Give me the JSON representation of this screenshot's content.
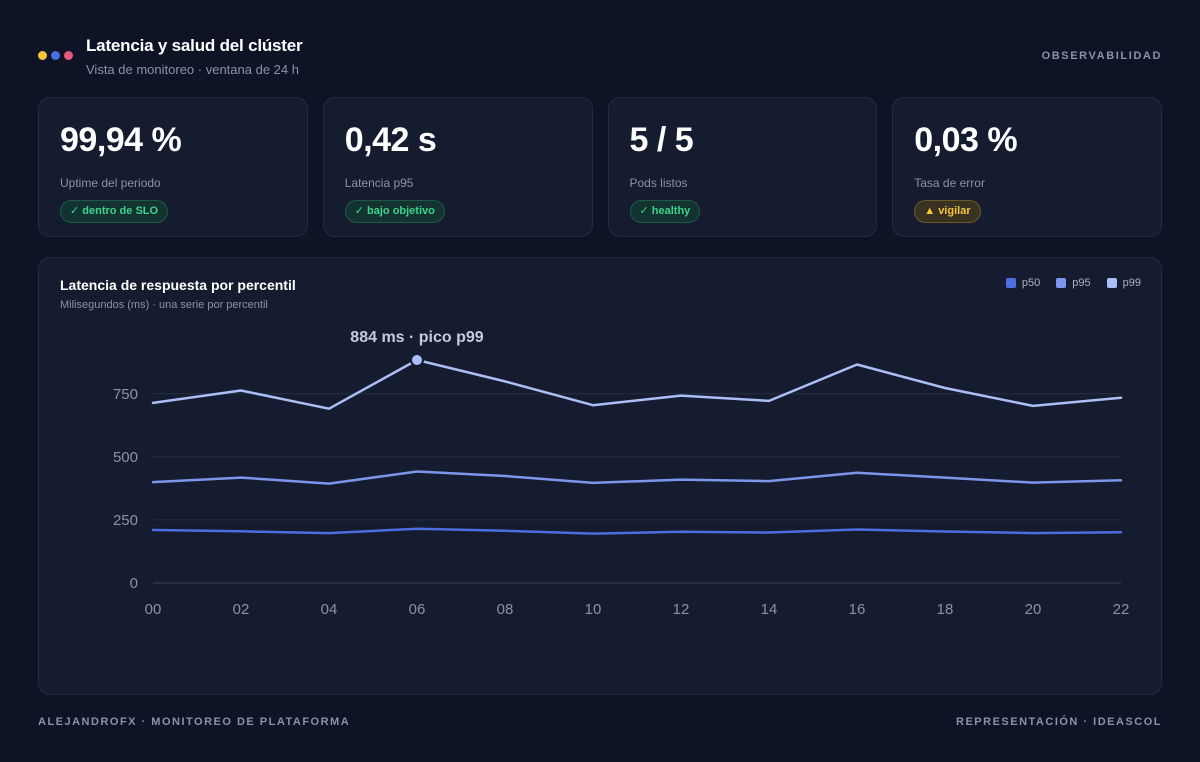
{
  "header": {
    "title": "Latencia y salud del clúster",
    "subtitle": "Vista de monitoreo · ventana de 24 h",
    "section_label": "OBSERVABILIDAD",
    "dot_colors": [
      "#f2c53d",
      "#4a6fe0",
      "#e85a7a"
    ]
  },
  "kpis": [
    {
      "value": "99,94 %",
      "label": "Uptime del periodo",
      "badge": "✓ dentro de SLO",
      "status": "ok"
    },
    {
      "value": "0,42 s",
      "label": "Latencia p95",
      "badge": "✓ bajo objetivo",
      "status": "ok"
    },
    {
      "value": "5 / 5",
      "label": "Pods listos",
      "badge": "✓ healthy",
      "status": "ok"
    },
    {
      "value": "0,03 %",
      "label": "Tasa de error",
      "badge": "▲ vigilar",
      "status": "warn"
    }
  ],
  "chart_data": {
    "type": "line",
    "title": "Latencia de respuesta por percentil",
    "subtitle": "Milisegundos (ms) · una serie por percentil",
    "categories": [
      "00",
      "02",
      "04",
      "06",
      "08",
      "10",
      "12",
      "14",
      "16",
      "18",
      "20",
      "22"
    ],
    "ylim": [
      0,
      884
    ],
    "yticks": [
      0,
      250,
      500,
      750
    ],
    "grid": true,
    "legend_position": "top-right",
    "series": [
      {
        "name": "p50",
        "color": "#4a6fe0",
        "values": [
          210,
          205,
          198,
          215,
          207,
          196,
          203,
          200,
          212,
          204,
          198,
          201
        ]
      },
      {
        "name": "p95",
        "color": "#7b96ea",
        "values": [
          400,
          418,
          394,
          442,
          424,
          397,
          410,
          404,
          437,
          418,
          398,
          407
        ]
      },
      {
        "name": "p99",
        "color": "#aabff5",
        "values": [
          714,
          763,
          691,
          884,
          799,
          705,
          743,
          722,
          866,
          773,
          702,
          734
        ]
      }
    ],
    "annotation": {
      "text": "884 ms · pico p99",
      "series": "p99",
      "index": 3
    }
  },
  "footer": {
    "left": "ALEJANDROFX · MONITOREO DE PLATAFORMA",
    "right": "REPRESENTACIÓN · IDEASCOL"
  }
}
